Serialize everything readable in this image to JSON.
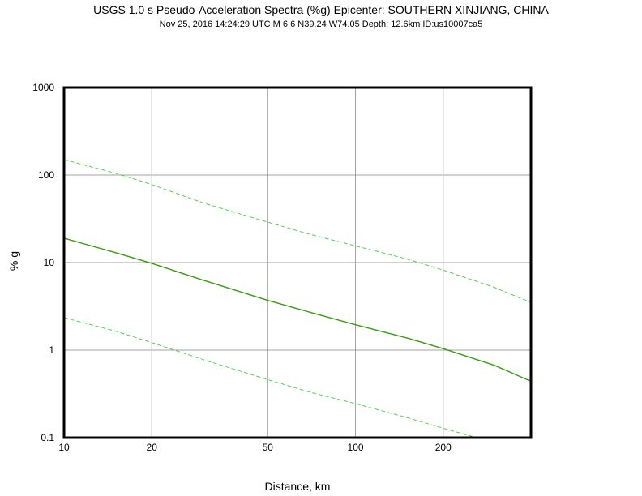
{
  "chart_data": {
    "type": "line",
    "title": "USGS 1.0 s Pseudo-Acceleration Spectra (%g) Epicenter: SOUTHERN XINJIANG, CHINA",
    "subtitle": "Nov 25, 2016 14:24:29 UTC   M 6.6   N39.24 W74.05   Depth: 12.6km   ID:us10007ca5",
    "xlabel": "Distance, km",
    "ylabel": "% g",
    "xscale": "log",
    "yscale": "log",
    "xlim": [
      10,
      400
    ],
    "ylim": [
      0.1,
      1000
    ],
    "grid": true,
    "xticks": [
      {
        "value": 10,
        "label": "10"
      },
      {
        "value": 20,
        "label": "20"
      },
      {
        "value": 50,
        "label": "50"
      },
      {
        "value": 100,
        "label": "100"
      },
      {
        "value": 200,
        "label": "200"
      }
    ],
    "yticks": [
      {
        "value": 0.1,
        "label": "0.1"
      },
      {
        "value": 1,
        "label": "1"
      },
      {
        "value": 10,
        "label": "10"
      },
      {
        "value": 100,
        "label": "100"
      },
      {
        "value": 1000,
        "label": "1000"
      }
    ],
    "series": [
      {
        "style": "solid",
        "color": "#3a9b10",
        "x": [
          10,
          15,
          20,
          30,
          50,
          70,
          100,
          150,
          200,
          300,
          400
        ],
        "y": [
          19,
          13,
          9.8,
          6.3,
          3.7,
          2.7,
          1.95,
          1.38,
          1.04,
          0.67,
          0.44
        ]
      },
      {
        "style": "dashed",
        "color": "#4cd44c",
        "x": [
          10,
          15,
          20,
          30,
          50,
          70,
          100,
          150,
          200,
          300,
          400
        ],
        "y": [
          150,
          105,
          78,
          48,
          29,
          21,
          15.5,
          11,
          8.2,
          5.2,
          3.5
        ]
      },
      {
        "style": "dashed",
        "color": "#4cd44c",
        "x": [
          10,
          15,
          20,
          30,
          50,
          70,
          100,
          150,
          200,
          260
        ],
        "y": [
          2.35,
          1.65,
          1.22,
          0.78,
          0.46,
          0.33,
          0.245,
          0.17,
          0.128,
          0.1
        ]
      }
    ]
  }
}
